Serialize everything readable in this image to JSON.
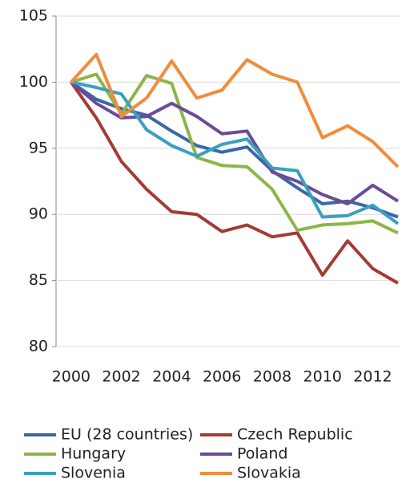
{
  "chart_data": {
    "type": "line",
    "x": [
      2000,
      2001,
      2002,
      2003,
      2004,
      2005,
      2006,
      2007,
      2008,
      2009,
      2010,
      2011,
      2012,
      2013
    ],
    "series": [
      {
        "name": "EU (28 countries)",
        "color": "#3a67a6",
        "values": [
          100,
          98.7,
          98.0,
          97.5,
          96.3,
          95.2,
          94.7,
          95.1,
          93.3,
          92.0,
          90.8,
          91.0,
          90.5,
          89.8
        ]
      },
      {
        "name": "Czech Republic",
        "color": "#a33b36",
        "values": [
          100,
          97.3,
          94.0,
          91.9,
          90.2,
          90.0,
          88.7,
          89.2,
          88.3,
          88.6,
          85.4,
          88.0,
          85.9,
          84.8
        ]
      },
      {
        "name": "Hungary",
        "color": "#8cb54a",
        "values": [
          100,
          100.6,
          97.6,
          100.5,
          99.9,
          94.3,
          93.7,
          93.6,
          91.9,
          88.8,
          89.2,
          89.3,
          89.5,
          88.6
        ]
      },
      {
        "name": "Poland",
        "color": "#6d4a96",
        "values": [
          100,
          98.4,
          97.3,
          97.4,
          98.4,
          97.4,
          96.1,
          96.3,
          93.2,
          92.5,
          91.5,
          90.8,
          92.2,
          91.0
        ]
      },
      {
        "name": "Slovenia",
        "color": "#3aa0c0",
        "values": [
          100,
          99.6,
          99.1,
          96.4,
          95.2,
          94.4,
          95.3,
          95.7,
          93.5,
          93.3,
          89.8,
          89.9,
          90.7,
          89.3
        ]
      },
      {
        "name": "Slovakia",
        "color": "#f08c3c",
        "values": [
          100,
          102.1,
          97.4,
          98.8,
          101.6,
          98.8,
          99.4,
          101.7,
          100.6,
          100.0,
          95.8,
          96.7,
          95.5,
          93.6
        ]
      }
    ],
    "xlim": [
      1999.4,
      2013.1
    ],
    "xticks": [
      2000,
      2002,
      2004,
      2006,
      2008,
      2010,
      2012
    ],
    "ylim": [
      80,
      105
    ],
    "yticks": [
      80,
      85,
      90,
      95,
      100,
      105
    ],
    "grid": true
  }
}
